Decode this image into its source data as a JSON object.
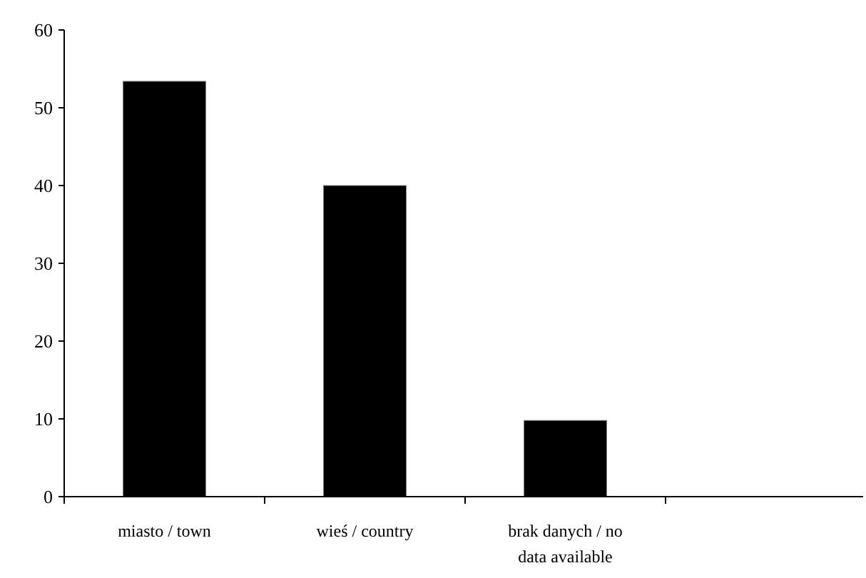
{
  "chart_data": {
    "type": "bar",
    "categories": [
      "miasto / town",
      "wieś / country",
      "brak danych / no data available",
      null
    ],
    "values": [
      53.4,
      40.0,
      9.8,
      null
    ],
    "color": "#000000",
    "ylim": [
      0,
      60
    ],
    "yticks": [
      0,
      10,
      20,
      30,
      40,
      50,
      60
    ],
    "grid": false
  }
}
